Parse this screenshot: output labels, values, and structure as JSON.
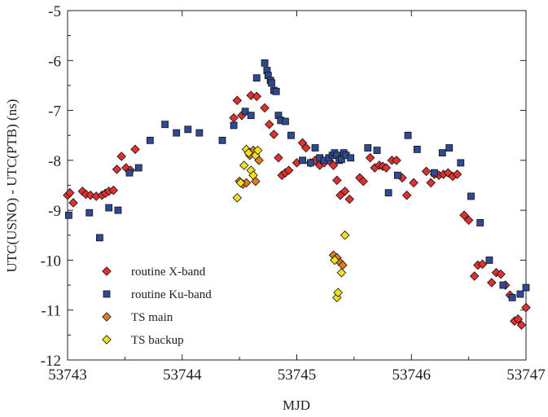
{
  "chart_data": {
    "type": "scatter",
    "title": "",
    "xlabel": "MJD",
    "ylabel": "UTC(USNO) - UTC(PTB) (ns)",
    "xlim": [
      53743,
      53747
    ],
    "ylim": [
      -12,
      -5
    ],
    "x_ticks": [
      "53743",
      "53744",
      "53745",
      "53746",
      "53747"
    ],
    "y_ticks": [
      "-12",
      "-11",
      "-10",
      "-9",
      "-8",
      "-7",
      "-6",
      "-5"
    ],
    "grid": false,
    "legend_position": "bottom-left",
    "series": [
      {
        "name": "routine X-band",
        "marker": "diamond",
        "color": "#e03030",
        "points": [
          [
            53743.0,
            -8.7
          ],
          [
            53743.02,
            -8.65
          ],
          [
            53743.05,
            -8.85
          ],
          [
            53743.13,
            -8.62
          ],
          [
            53743.16,
            -8.68
          ],
          [
            53743.2,
            -8.7
          ],
          [
            53743.25,
            -8.72
          ],
          [
            53743.3,
            -8.7
          ],
          [
            53743.33,
            -8.66
          ],
          [
            53743.36,
            -8.62
          ],
          [
            53743.4,
            -8.6
          ],
          [
            53743.43,
            -8.18
          ],
          [
            53743.47,
            -7.92
          ],
          [
            53743.51,
            -8.15
          ],
          [
            53743.55,
            -8.2
          ],
          [
            53743.59,
            -7.78
          ],
          [
            53744.45,
            -7.15
          ],
          [
            53744.48,
            -6.8
          ],
          [
            53744.52,
            -7.1
          ],
          [
            53744.6,
            -6.7
          ],
          [
            53744.65,
            -6.72
          ],
          [
            53744.72,
            -6.95
          ],
          [
            53744.76,
            -7.28
          ],
          [
            53744.8,
            -7.48
          ],
          [
            53744.84,
            -7.95
          ],
          [
            53744.87,
            -8.3
          ],
          [
            53744.9,
            -8.25
          ],
          [
            53744.93,
            -8.2
          ],
          [
            53745.0,
            -8.05
          ],
          [
            53745.05,
            -7.65
          ],
          [
            53745.08,
            -7.75
          ],
          [
            53745.12,
            -8.05
          ],
          [
            53745.16,
            -8.0
          ],
          [
            53745.2,
            -8.1
          ],
          [
            53745.24,
            -8.05
          ],
          [
            53745.28,
            -8.0
          ],
          [
            53745.32,
            -8.1
          ],
          [
            53745.35,
            -8.4
          ],
          [
            53745.38,
            -8.7
          ],
          [
            53745.42,
            -8.62
          ],
          [
            53745.46,
            -8.78
          ],
          [
            53745.55,
            -8.35
          ],
          [
            53745.58,
            -8.42
          ],
          [
            53745.64,
            -7.95
          ],
          [
            53745.68,
            -8.15
          ],
          [
            53745.72,
            -8.1
          ],
          [
            53745.75,
            -8.12
          ],
          [
            53745.78,
            -8.15
          ],
          [
            53745.83,
            -8.0
          ],
          [
            53745.87,
            -8.0
          ],
          [
            53745.92,
            -8.35
          ],
          [
            53745.96,
            -8.7
          ],
          [
            53746.02,
            -8.45
          ],
          [
            53746.13,
            -8.22
          ],
          [
            53746.17,
            -8.45
          ],
          [
            53746.2,
            -8.28
          ],
          [
            53746.24,
            -8.3
          ],
          [
            53746.28,
            -8.28
          ],
          [
            53746.32,
            -8.25
          ],
          [
            53746.36,
            -8.32
          ],
          [
            53746.4,
            -8.28
          ],
          [
            53746.46,
            -9.1
          ],
          [
            53746.5,
            -9.2
          ],
          [
            53746.55,
            -10.32
          ],
          [
            53746.58,
            -10.1
          ],
          [
            53746.62,
            -10.08
          ],
          [
            53746.7,
            -10.45
          ],
          [
            53746.74,
            -10.25
          ],
          [
            53746.78,
            -10.28
          ],
          [
            53746.82,
            -10.5
          ],
          [
            53746.86,
            -10.7
          ],
          [
            53746.9,
            -11.22
          ],
          [
            53746.93,
            -11.18
          ],
          [
            53746.96,
            -11.3
          ],
          [
            53747.0,
            -10.95
          ]
        ]
      },
      {
        "name": "routine Ku-band",
        "marker": "square",
        "color": "#2e4a94",
        "points": [
          [
            53743.01,
            -9.1
          ],
          [
            53743.19,
            -9.05
          ],
          [
            53743.28,
            -9.55
          ],
          [
            53743.36,
            -8.95
          ],
          [
            53743.44,
            -9.0
          ],
          [
            53743.54,
            -8.25
          ],
          [
            53743.62,
            -8.15
          ],
          [
            53743.72,
            -7.6
          ],
          [
            53743.85,
            -7.28
          ],
          [
            53743.95,
            -7.45
          ],
          [
            53744.05,
            -7.38
          ],
          [
            53744.15,
            -7.45
          ],
          [
            53744.35,
            -7.6
          ],
          [
            53744.45,
            -7.3
          ],
          [
            53744.55,
            -7.02
          ],
          [
            53744.6,
            -7.1
          ],
          [
            53744.65,
            -6.35
          ],
          [
            53744.72,
            -6.05
          ],
          [
            53744.74,
            -6.2
          ],
          [
            53744.75,
            -6.3
          ],
          [
            53744.77,
            -6.4
          ],
          [
            53744.78,
            -6.45
          ],
          [
            53744.8,
            -6.6
          ],
          [
            53744.82,
            -6.62
          ],
          [
            53744.84,
            -7.1
          ],
          [
            53744.86,
            -7.2
          ],
          [
            53744.9,
            -7.22
          ],
          [
            53744.95,
            -7.5
          ],
          [
            53745.05,
            -8.0
          ],
          [
            53745.12,
            -8.05
          ],
          [
            53745.16,
            -7.75
          ],
          [
            53745.2,
            -7.95
          ],
          [
            53745.24,
            -8.0
          ],
          [
            53745.28,
            -7.95
          ],
          [
            53745.31,
            -7.9
          ],
          [
            53745.33,
            -7.85
          ],
          [
            53745.35,
            -7.9
          ],
          [
            53745.37,
            -8.0
          ],
          [
            53745.39,
            -7.98
          ],
          [
            53745.41,
            -7.85
          ],
          [
            53745.43,
            -7.9
          ],
          [
            53745.47,
            -7.95
          ],
          [
            53745.62,
            -7.75
          ],
          [
            53745.7,
            -7.8
          ],
          [
            53745.8,
            -8.65
          ],
          [
            53745.88,
            -8.3
          ],
          [
            53745.97,
            -7.5
          ],
          [
            53746.05,
            -7.78
          ],
          [
            53746.2,
            -8.25
          ],
          [
            53746.27,
            -7.85
          ],
          [
            53746.33,
            -7.75
          ],
          [
            53746.43,
            -8.05
          ],
          [
            53746.52,
            -8.72
          ],
          [
            53746.6,
            -9.25
          ],
          [
            53746.68,
            -10.0
          ],
          [
            53746.8,
            -10.5
          ],
          [
            53746.88,
            -10.75
          ],
          [
            53746.95,
            -10.68
          ],
          [
            53747.0,
            -10.55
          ]
        ]
      },
      {
        "name": "TS main",
        "marker": "diamond",
        "color": "#e07a24",
        "points": [
          [
            53744.5,
            -8.42
          ],
          [
            53744.53,
            -8.48
          ],
          [
            53744.56,
            -8.45
          ],
          [
            53744.59,
            -7.9
          ],
          [
            53744.62,
            -7.8
          ],
          [
            53744.64,
            -8.42
          ],
          [
            53744.67,
            -8.0
          ],
          [
            53745.32,
            -9.9
          ],
          [
            53745.35,
            -9.95
          ],
          [
            53745.38,
            -10.05
          ],
          [
            53745.4,
            -10.1
          ]
        ]
      },
      {
        "name": "TS backup",
        "marker": "diamond",
        "color": "#f2e020",
        "points": [
          [
            53744.48,
            -8.75
          ],
          [
            53744.51,
            -8.45
          ],
          [
            53744.54,
            -8.1
          ],
          [
            53744.56,
            -7.78
          ],
          [
            53744.58,
            -7.85
          ],
          [
            53744.6,
            -8.2
          ],
          [
            53744.62,
            -8.3
          ],
          [
            53744.64,
            -7.9
          ],
          [
            53744.66,
            -7.8
          ],
          [
            53745.33,
            -10.0
          ],
          [
            53745.35,
            -10.75
          ],
          [
            53745.36,
            -10.65
          ],
          [
            53745.39,
            -10.25
          ],
          [
            53745.42,
            -9.5
          ]
        ]
      }
    ]
  }
}
